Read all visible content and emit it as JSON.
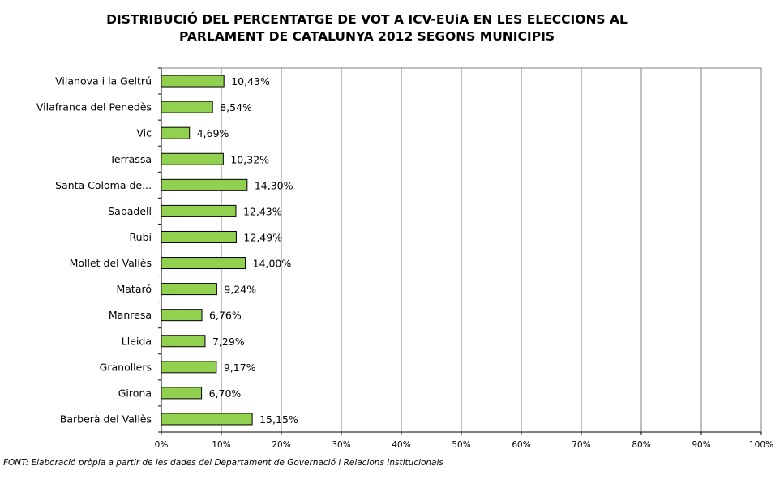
{
  "chart_data": {
    "type": "bar",
    "orientation": "horizontal",
    "title_lines": [
      "DISTRIBUCIÓ DEL PERCENTATGE DE VOT A ICV-EUiA EN LES ELECCIONS AL",
      "PARLAMENT DE CATALUNYA 2012 SEGONS MUNICIPIS"
    ],
    "categories": [
      "Vilanova i la Geltrú",
      "Vilafranca del Penedès",
      "Vic",
      "Terrassa",
      "Santa Coloma de...",
      "Sabadell",
      "Rubí",
      "Mollet del Vallès",
      "Mataró",
      "Manresa",
      "Lleida",
      "Granollers",
      "Girona",
      "Barberà del Vallès"
    ],
    "values": [
      10.43,
      8.54,
      4.69,
      10.32,
      14.3,
      12.43,
      12.49,
      14.0,
      9.24,
      6.76,
      7.29,
      9.17,
      6.7,
      15.15
    ],
    "value_labels": [
      "10,43%",
      "8,54%",
      "4,69%",
      "10,32%",
      "14,30%",
      "12,43%",
      "12,49%",
      "14,00%",
      "9,24%",
      "6,76%",
      "7,29%",
      "9,17%",
      "6,70%",
      "15,15%"
    ],
    "xlim": [
      0,
      100
    ],
    "x_ticks": [
      "0%",
      "10%",
      "20%",
      "30%",
      "40%",
      "50%",
      "60%",
      "70%",
      "80%",
      "90%",
      "100%"
    ],
    "grid": true,
    "legend": "none",
    "bar_color": "#92d050",
    "bar_border_color": "#000000",
    "grid_color": "#808080"
  },
  "source": "FONT: Elaboració pròpia a partir de les dades del Departament de Governació i Relacions Institucionals"
}
